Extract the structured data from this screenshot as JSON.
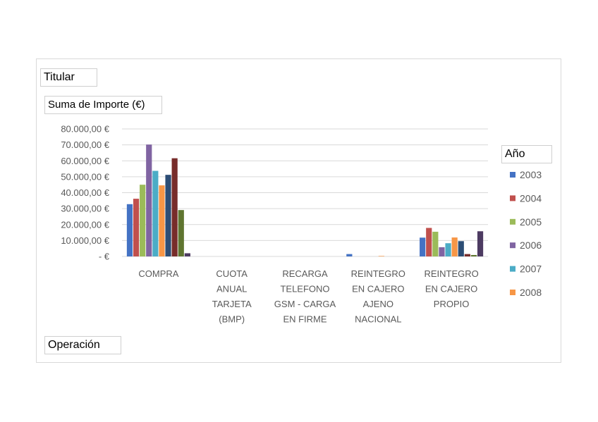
{
  "filters": {
    "titular": "Titular",
    "values_field": "Suma de Importe (€)",
    "legend_field": "Año",
    "axis_field": "Operación"
  },
  "chart_data": {
    "type": "bar",
    "categories": [
      [
        "COMPRA"
      ],
      [
        "CUOTA",
        "ANUAL",
        "TARJETA",
        "(BMP)"
      ],
      [
        "RECARGA",
        "TELEFONO",
        "GSM - CARGA",
        "EN FIRME"
      ],
      [
        "REINTEGRO",
        "EN CAJERO",
        "AJENO",
        "NACIONAL"
      ],
      [
        "REINTEGRO",
        "EN CAJERO",
        "PROPIO"
      ]
    ],
    "ylim": [
      0,
      80000
    ],
    "yticks": [
      {
        "value": 80000,
        "label": "80.000,00 €"
      },
      {
        "value": 70000,
        "label": "70.000,00 €"
      },
      {
        "value": 60000,
        "label": "60.000,00 €"
      },
      {
        "value": 50000,
        "label": "50.000,00 €"
      },
      {
        "value": 40000,
        "label": "40.000,00 €"
      },
      {
        "value": 30000,
        "label": "30.000,00 €"
      },
      {
        "value": 20000,
        "label": "20.000,00 €"
      },
      {
        "value": 10000,
        "label": "10.000,00 €"
      },
      {
        "value": 0,
        "label": "-   €"
      }
    ],
    "grid": true,
    "legend_position": "right",
    "legend_title": "Año",
    "series": [
      {
        "name": "2003",
        "color": "#4472c4",
        "values": [
          32800,
          0,
          0,
          1500,
          11800
        ],
        "legend": true
      },
      {
        "name": "2004",
        "color": "#c0504d",
        "values": [
          36200,
          0,
          0,
          0,
          17900
        ],
        "legend": true
      },
      {
        "name": "2005",
        "color": "#9bbb59",
        "values": [
          45000,
          0,
          0,
          0,
          15500
        ],
        "legend": true
      },
      {
        "name": "2006",
        "color": "#8064a2",
        "values": [
          70200,
          0,
          0,
          0,
          5800
        ],
        "legend": true
      },
      {
        "name": "2007",
        "color": "#4bacc6",
        "values": [
          53700,
          0,
          0,
          0,
          8300
        ],
        "legend": true
      },
      {
        "name": "2008",
        "color": "#f79646",
        "values": [
          44600,
          0,
          0,
          300,
          11900
        ],
        "legend": true
      },
      {
        "color": "#2c4d75",
        "values": [
          51200,
          0,
          0,
          0,
          9600
        ],
        "legend": false
      },
      {
        "color": "#772c2a",
        "values": [
          61600,
          0,
          0,
          0,
          1500
        ],
        "legend": false
      },
      {
        "color": "#5f7530",
        "values": [
          29100,
          0,
          0,
          0,
          900
        ],
        "legend": false
      },
      {
        "color": "#4d3b62",
        "values": [
          2000,
          0,
          0,
          0,
          15800
        ],
        "legend": false
      }
    ]
  }
}
